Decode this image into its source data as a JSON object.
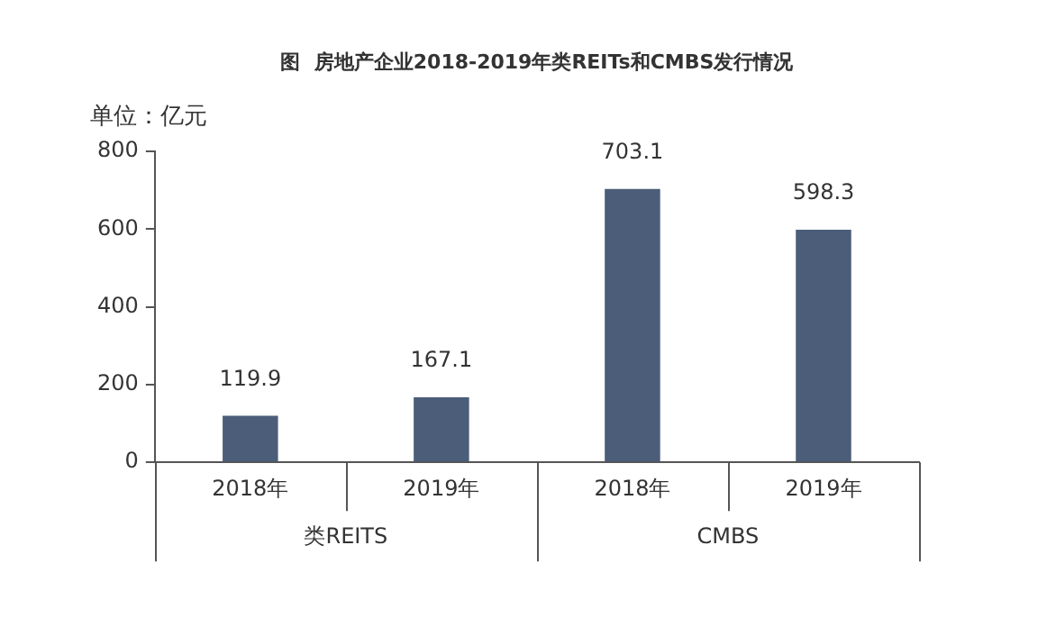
{
  "chart_data": {
    "type": "bar",
    "title": "图  房地产企业2018-2019年类REITs和CMBS发行情况",
    "ylabel": "单位：亿元",
    "categories": [
      "2018年",
      "2019年",
      "2018年",
      "2019年"
    ],
    "values": [
      119.9,
      167.1,
      703.1,
      598.3
    ],
    "color": "#4b5d78",
    "ylim": [
      0,
      800
    ],
    "yticks": [
      0,
      200,
      400,
      600,
      800
    ],
    "grid": false,
    "data_labels": true,
    "annotations": [
      "类REITS",
      "CMBS"
    ]
  }
}
